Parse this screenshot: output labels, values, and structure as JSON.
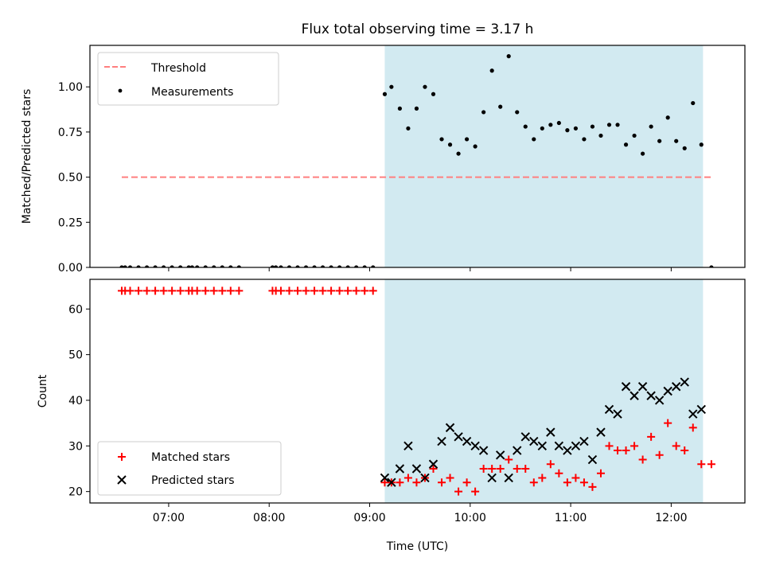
{
  "chart_data": [
    {
      "type": "scatter",
      "title": "Flux total observing time = 3.17 h",
      "ylabel": "Matched/Predicted stars",
      "xlim": [
        "06:13",
        "12:44"
      ],
      "ylim": [
        0,
        1.23
      ],
      "yticks": [
        "0.00",
        "0.25",
        "0.50",
        "0.75",
        "1.00"
      ],
      "shaded_span": [
        "09:09",
        "12:19"
      ],
      "shade_color": "#add8e6",
      "legend_position": "upper left",
      "threshold": {
        "name": "Threshold",
        "y": 0.5,
        "x_range": [
          "06:32",
          "12:24"
        ],
        "color": "#ff7f7f",
        "style": "dashed"
      },
      "series": [
        {
          "name": "Measurements",
          "color": "#000000",
          "x": [
            "06:32",
            "06:34",
            "06:37",
            "06:42",
            "06:47",
            "06:52",
            "06:57",
            "07:02",
            "07:07",
            "07:12",
            "07:14",
            "07:17",
            "07:22",
            "07:27",
            "07:32",
            "07:37",
            "07:42",
            "08:02",
            "08:04",
            "08:07",
            "08:12",
            "08:17",
            "08:22",
            "08:27",
            "08:32",
            "08:37",
            "08:42",
            "08:47",
            "08:52",
            "08:57",
            "09:02",
            "09:09",
            "09:13",
            "09:18",
            "09:23",
            "09:28",
            "09:33",
            "09:38",
            "09:43",
            "09:48",
            "09:53",
            "09:58",
            "10:03",
            "10:08",
            "10:13",
            "10:18",
            "10:23",
            "10:28",
            "10:33",
            "10:38",
            "10:43",
            "10:48",
            "10:53",
            "10:58",
            "11:03",
            "11:08",
            "11:13",
            "11:18",
            "11:23",
            "11:28",
            "11:33",
            "11:38",
            "11:43",
            "11:48",
            "11:53",
            "11:58",
            "12:03",
            "12:08",
            "12:13",
            "12:18",
            "12:24"
          ],
          "y": [
            0,
            0,
            0,
            0,
            0,
            0,
            0,
            0,
            0,
            0,
            0,
            0,
            0,
            0,
            0,
            0,
            0,
            0,
            0,
            0,
            0,
            0,
            0,
            0,
            0,
            0,
            0,
            0,
            0,
            0,
            0,
            0.96,
            1.0,
            0.88,
            0.77,
            0.88,
            1.0,
            0.96,
            0.71,
            0.68,
            0.63,
            0.71,
            0.67,
            0.86,
            1.09,
            0.89,
            1.17,
            0.86,
            0.78,
            0.71,
            0.77,
            0.79,
            0.8,
            0.76,
            0.77,
            0.71,
            0.78,
            0.73,
            0.79,
            0.79,
            0.68,
            0.73,
            0.63,
            0.78,
            0.7,
            0.83,
            0.7,
            0.66,
            0.91,
            0.68,
            0.0
          ]
        }
      ]
    },
    {
      "type": "scatter",
      "ylabel": "Count",
      "xlabel": "Time (UTC)",
      "xlim": [
        "06:13",
        "12:44"
      ],
      "ylim": [
        17.5,
        66.5
      ],
      "yticks": [
        "20",
        "30",
        "40",
        "50",
        "60"
      ],
      "xticks": [
        "07:00",
        "08:00",
        "09:00",
        "10:00",
        "11:00",
        "12:00"
      ],
      "shaded_span": [
        "09:09",
        "12:19"
      ],
      "legend_position": "lower left",
      "series": [
        {
          "name": "Matched stars",
          "marker": "+",
          "color": "#ff0000",
          "x": [
            "06:32",
            "06:34",
            "06:37",
            "06:42",
            "06:47",
            "06:52",
            "06:57",
            "07:02",
            "07:07",
            "07:12",
            "07:14",
            "07:17",
            "07:22",
            "07:27",
            "07:32",
            "07:37",
            "07:42",
            "08:02",
            "08:04",
            "08:07",
            "08:12",
            "08:17",
            "08:22",
            "08:27",
            "08:32",
            "08:37",
            "08:42",
            "08:47",
            "08:52",
            "08:57",
            "09:02",
            "09:09",
            "09:13",
            "09:18",
            "09:23",
            "09:28",
            "09:33",
            "09:38",
            "09:43",
            "09:48",
            "09:53",
            "09:58",
            "10:03",
            "10:08",
            "10:13",
            "10:18",
            "10:23",
            "10:28",
            "10:33",
            "10:38",
            "10:43",
            "10:48",
            "10:53",
            "10:58",
            "11:03",
            "11:08",
            "11:13",
            "11:18",
            "11:23",
            "11:28",
            "11:33",
            "11:38",
            "11:43",
            "11:48",
            "11:53",
            "11:58",
            "12:03",
            "12:08",
            "12:13",
            "12:18",
            "12:24"
          ],
          "y": [
            64,
            64,
            64,
            64,
            64,
            64,
            64,
            64,
            64,
            64,
            64,
            64,
            64,
            64,
            64,
            64,
            64,
            64,
            64,
            64,
            64,
            64,
            64,
            64,
            64,
            64,
            64,
            64,
            64,
            64,
            64,
            22,
            22,
            22,
            23,
            22,
            23,
            25,
            22,
            23,
            20,
            22,
            20,
            25,
            25,
            25,
            27,
            25,
            25,
            22,
            23,
            26,
            24,
            22,
            23,
            22,
            21,
            24,
            30,
            29,
            29,
            30,
            27,
            32,
            28,
            35,
            30,
            29,
            34,
            26,
            26
          ]
        },
        {
          "name": "Predicted stars",
          "marker": "x",
          "color": "#000000",
          "x": [
            "09:09",
            "09:13",
            "09:18",
            "09:23",
            "09:28",
            "09:33",
            "09:38",
            "09:43",
            "09:48",
            "09:53",
            "09:58",
            "10:03",
            "10:08",
            "10:13",
            "10:18",
            "10:23",
            "10:28",
            "10:33",
            "10:38",
            "10:43",
            "10:48",
            "10:53",
            "10:58",
            "11:03",
            "11:08",
            "11:13",
            "11:18",
            "11:23",
            "11:28",
            "11:33",
            "11:38",
            "11:43",
            "11:48",
            "11:53",
            "11:58",
            "12:03",
            "12:08",
            "12:13",
            "12:18"
          ],
          "y": [
            23,
            22,
            25,
            30,
            25,
            23,
            26,
            31,
            34,
            32,
            31,
            30,
            29,
            23,
            28,
            23,
            29,
            32,
            31,
            30,
            33,
            30,
            29,
            30,
            31,
            27,
            33,
            38,
            37,
            43,
            41,
            43,
            41,
            40,
            42,
            43,
            44,
            37,
            38
          ]
        }
      ]
    }
  ]
}
